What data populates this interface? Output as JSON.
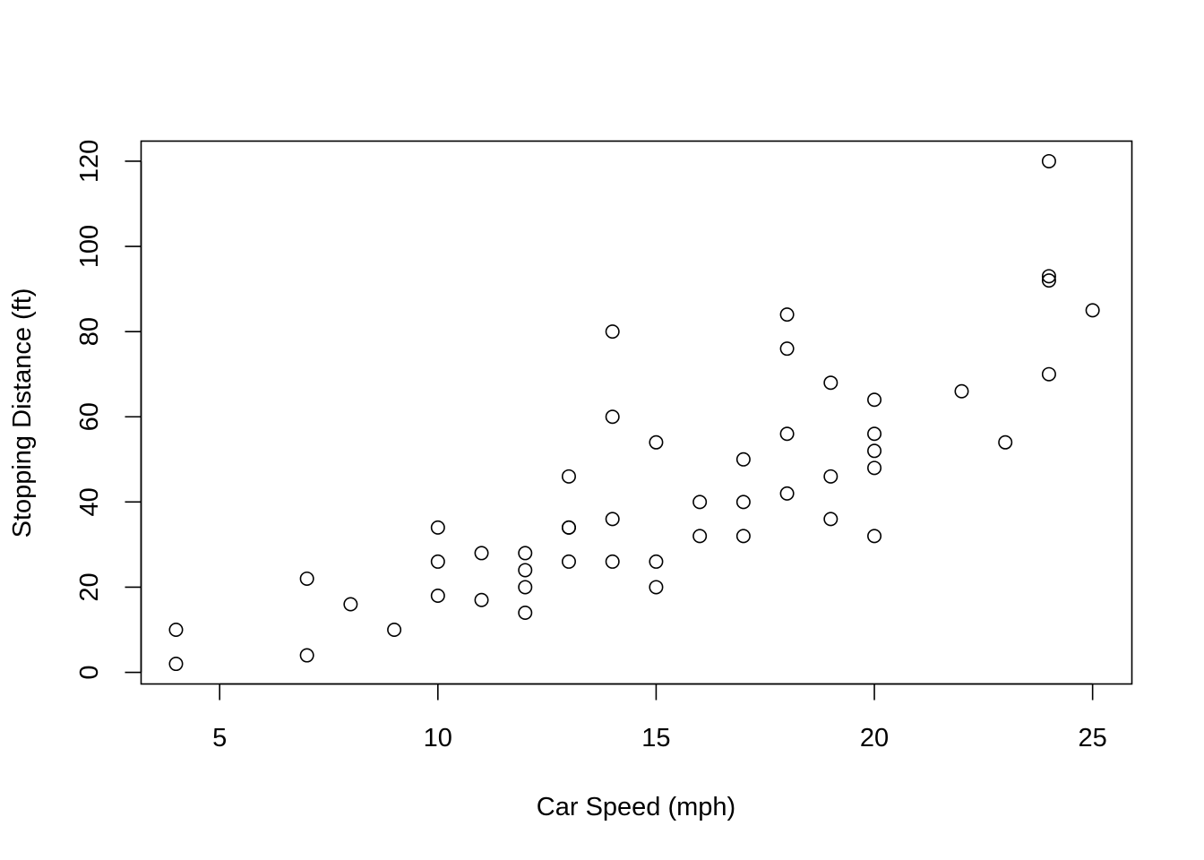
{
  "chart_data": {
    "type": "scatter",
    "title": "",
    "xlabel": "Car Speed (mph)",
    "ylabel": "Stopping Distance (ft)",
    "xlim": [
      3.2,
      25.9
    ],
    "ylim": [
      -2.72,
      124.72
    ],
    "x_ticks": [
      5,
      10,
      15,
      20,
      25
    ],
    "y_ticks": [
      0,
      20,
      40,
      60,
      80,
      100,
      120
    ],
    "x_tick_labels": [
      "5",
      "10",
      "15",
      "20",
      "25"
    ],
    "y_tick_labels": [
      "0",
      "20",
      "40",
      "60",
      "80",
      "100",
      "120"
    ],
    "grid": false,
    "legend": "none",
    "marker": "open-circle",
    "color": "#000000",
    "series": [
      {
        "points": [
          {
            "x": 4,
            "y": 2
          },
          {
            "x": 4,
            "y": 10
          },
          {
            "x": 7,
            "y": 4
          },
          {
            "x": 7,
            "y": 22
          },
          {
            "x": 8,
            "y": 16
          },
          {
            "x": 9,
            "y": 10
          },
          {
            "x": 10,
            "y": 18
          },
          {
            "x": 10,
            "y": 26
          },
          {
            "x": 10,
            "y": 34
          },
          {
            "x": 11,
            "y": 17
          },
          {
            "x": 11,
            "y": 28
          },
          {
            "x": 12,
            "y": 14
          },
          {
            "x": 12,
            "y": 20
          },
          {
            "x": 12,
            "y": 24
          },
          {
            "x": 12,
            "y": 28
          },
          {
            "x": 13,
            "y": 26
          },
          {
            "x": 13,
            "y": 34
          },
          {
            "x": 13,
            "y": 34
          },
          {
            "x": 13,
            "y": 46
          },
          {
            "x": 14,
            "y": 26
          },
          {
            "x": 14,
            "y": 36
          },
          {
            "x": 14,
            "y": 60
          },
          {
            "x": 14,
            "y": 80
          },
          {
            "x": 15,
            "y": 20
          },
          {
            "x": 15,
            "y": 26
          },
          {
            "x": 15,
            "y": 54
          },
          {
            "x": 16,
            "y": 32
          },
          {
            "x": 16,
            "y": 40
          },
          {
            "x": 17,
            "y": 32
          },
          {
            "x": 17,
            "y": 40
          },
          {
            "x": 17,
            "y": 50
          },
          {
            "x": 18,
            "y": 42
          },
          {
            "x": 18,
            "y": 56
          },
          {
            "x": 18,
            "y": 76
          },
          {
            "x": 18,
            "y": 84
          },
          {
            "x": 19,
            "y": 36
          },
          {
            "x": 19,
            "y": 46
          },
          {
            "x": 19,
            "y": 68
          },
          {
            "x": 20,
            "y": 32
          },
          {
            "x": 20,
            "y": 48
          },
          {
            "x": 20,
            "y": 52
          },
          {
            "x": 20,
            "y": 56
          },
          {
            "x": 20,
            "y": 64
          },
          {
            "x": 22,
            "y": 66
          },
          {
            "x": 23,
            "y": 54
          },
          {
            "x": 24,
            "y": 70
          },
          {
            "x": 24,
            "y": 92
          },
          {
            "x": 24,
            "y": 93
          },
          {
            "x": 24,
            "y": 120
          },
          {
            "x": 25,
            "y": 85
          }
        ]
      }
    ]
  }
}
